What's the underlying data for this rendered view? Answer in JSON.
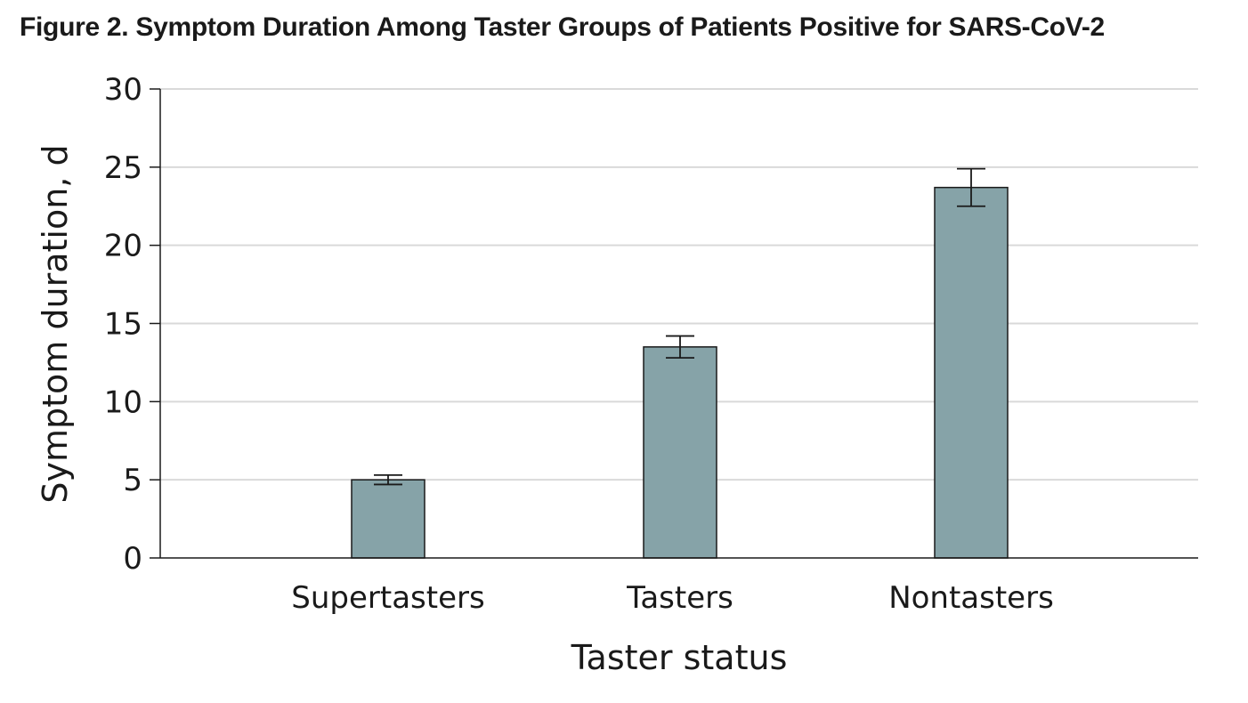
{
  "figure": {
    "title": "Figure 2.  Symptom Duration Among Taster Groups of Patients Positive for SARS-CoV-2"
  },
  "chart_data": {
    "type": "bar",
    "categories": [
      "Supertasters",
      "Tasters",
      "Nontasters"
    ],
    "values": [
      5.0,
      13.5,
      23.7
    ],
    "error_bars": [
      {
        "low": 4.7,
        "high": 5.3
      },
      {
        "low": 12.8,
        "high": 14.2
      },
      {
        "low": 22.5,
        "high": 24.9
      }
    ],
    "title": "Figure 2.  Symptom Duration Among Taster Groups of Patients Positive for SARS-CoV-2",
    "xlabel": "Taster status",
    "ylabel": "Symptom duration, d",
    "ylim": [
      0,
      30
    ],
    "yticks": [
      0,
      5,
      10,
      15,
      20,
      25,
      30
    ],
    "grid": true,
    "legend": "none",
    "bar_color": "#86a3a8",
    "bar_edge_color": "#1a1a1a",
    "grid_color": "#d9d9d9"
  }
}
